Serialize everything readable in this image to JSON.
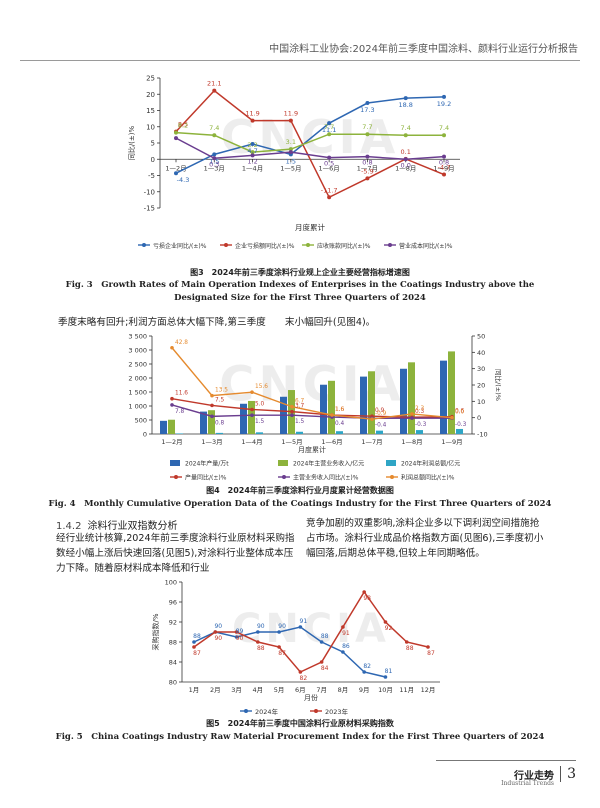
{
  "header": {
    "running_title": "中国涂料工业协会:2024年前三季度中国涂料、颜料行业运行分析报告"
  },
  "watermark": "CNCIA",
  "figures": {
    "fig3": {
      "caption_cn": "图3　2024年前三季度涂料行业规上企业主要经营指标增速图",
      "caption_en": "Fig. 3　Growth Rates of Main Operation Indexes of Enterprises in the Coatings Industry above the Designated Size for the First Three Quarters of 2024"
    },
    "fig4": {
      "caption_cn": "图4　2024年前三季度涂料行业月度累计经营数据图",
      "caption_en": "Fig. 4　Monthly Cumulative Operation Data of the Coatings Industry for the First Three Quarters of 2024"
    },
    "fig5": {
      "caption_cn": "图5　2024年前三季度中国涂料行业原材料采购指数",
      "caption_en": "Fig. 5　China Coatings Industry Raw Material Procurement Index for the First Three Quarters of 2024"
    }
  },
  "text": {
    "line_after_fig3": "季度末略有回升;利润方面总体大幅下降,第三季度　　末小幅回升(见图4)。",
    "section_num": "1.4.2",
    "section_title": "涂料行业双指数分析",
    "left_para": "经行业统计核算,2024年前三季度涂料行业原材料采购指数经小幅上涨后快速回落(见图5),对涂料行业整体成本压力下降。随着原材料成本降低和行业",
    "right_para": "竞争加剧的双重影响,涂料企业多以下调利润空间措施抢占市场。涂料行业成品价格指数方面(见图6),三季度初小幅回落,后期总体平稳,但较上年同期略低。"
  },
  "footer": {
    "journal": "行业走势",
    "journal_en": "Industrial Trends",
    "page": "3"
  },
  "chart_data": [
    {
      "type": "line",
      "x": [
        "1—2月",
        "1—3月",
        "1—4月",
        "1—5月",
        "1—6月",
        "1—7月",
        "1—8月",
        "1—9月"
      ],
      "xlabel": "月度累计",
      "ylabel": "同比/(±)%",
      "ylim": [
        -15,
        25
      ],
      "yticks": [
        -15,
        -10,
        -5,
        0,
        5,
        10,
        15,
        20,
        25
      ],
      "series": [
        {
          "name": "亏损企业同比/(±)%",
          "color": "#2e67b2",
          "values": [
            -4.3,
            1.5,
            4.7,
            1.5,
            11.1,
            17.3,
            18.8,
            19.2
          ]
        },
        {
          "name": "企业亏损额同比/(±)%",
          "color": "#c0392b",
          "values": [
            8.5,
            21.1,
            11.9,
            11.9,
            -11.7,
            -5.9,
            0.1,
            -4.7
          ]
        },
        {
          "name": "应收账款同比/(±)%",
          "color": "#8db33c",
          "values": [
            8.2,
            7.4,
            2.2,
            3.1,
            7.7,
            7.7,
            7.4,
            7.4
          ]
        },
        {
          "name": "营业成本同比/(±)%",
          "color": "#6a3d8f",
          "values": [
            6.5,
            0.3,
            1.2,
            2.2,
            0.5,
            0.8,
            0.0,
            0.8
          ]
        }
      ],
      "data_labels": [
        {
          "series": 0,
          "index": 0,
          "text": "-4.3"
        },
        {
          "series": 0,
          "index": 1,
          "text": "1.5"
        },
        {
          "series": 0,
          "index": 2,
          "text": "4.7"
        },
        {
          "series": 0,
          "index": 3,
          "text": "1.5"
        },
        {
          "series": 0,
          "index": 4,
          "text": "11.1"
        },
        {
          "series": 0,
          "index": 5,
          "text": "17.3"
        },
        {
          "series": 0,
          "index": 6,
          "text": "18.8"
        },
        {
          "series": 0,
          "index": 7,
          "text": "19.2"
        },
        {
          "series": 1,
          "index": 0,
          "text": "8.5"
        },
        {
          "series": 1,
          "index": 1,
          "text": "21.1"
        },
        {
          "series": 1,
          "index": 2,
          "text": "11.9"
        },
        {
          "series": 1,
          "index": 3,
          "text": "11.9"
        },
        {
          "series": 1,
          "index": 4,
          "text": "-11.7"
        },
        {
          "series": 1,
          "index": 5,
          "text": "-5.9"
        },
        {
          "series": 1,
          "index": 6,
          "text": "0.1"
        },
        {
          "series": 1,
          "index": 7,
          "text": "-4.7"
        },
        {
          "series": 2,
          "index": 0,
          "text": "8.2"
        },
        {
          "series": 2,
          "index": 1,
          "text": "7.4"
        },
        {
          "series": 2,
          "index": 2,
          "text": "2.2"
        },
        {
          "series": 2,
          "index": 3,
          "text": "3.1"
        },
        {
          "series": 2,
          "index": 4,
          "text": "7.7"
        },
        {
          "series": 2,
          "index": 5,
          "text": "7.7"
        },
        {
          "series": 2,
          "index": 6,
          "text": "7.4"
        },
        {
          "series": 2,
          "index": 7,
          "text": "7.4"
        },
        {
          "series": 3,
          "index": 1,
          "text": "0.3"
        },
        {
          "series": 3,
          "index": 2,
          "text": "1.2"
        },
        {
          "series": 3,
          "index": 4,
          "text": "0.5"
        },
        {
          "series": 3,
          "index": 5,
          "text": "0.8"
        },
        {
          "series": 3,
          "index": 6,
          "text": "0.0"
        },
        {
          "series": 3,
          "index": 7,
          "text": "0.8"
        }
      ],
      "legend_position": "bottom",
      "grid": false
    },
    {
      "type": "bar",
      "x": [
        "1—2月",
        "1—3月",
        "1—4月",
        "1—5月",
        "1—6月",
        "1—7月",
        "1—8月",
        "1—9月"
      ],
      "xlabel": "月度累计",
      "ylabel_right": "同比/(±)%",
      "ylim_left": [
        0,
        3500
      ],
      "yticks_left": [
        0,
        500,
        1000,
        1500,
        2000,
        2500,
        3000,
        3500
      ],
      "ytick_labels_left": [
        "0",
        "500",
        "1 000",
        "1 500",
        "2 000",
        "2 500",
        "3 000",
        "3 500"
      ],
      "ylim_right": [
        -10,
        50
      ],
      "yticks_right": [
        -10,
        0,
        10,
        20,
        30,
        40,
        50
      ],
      "bar_series": [
        {
          "name": "2024年产量/万t",
          "color": "#2e67b2",
          "values": [
            470,
            800,
            1080,
            1330,
            1760,
            2050,
            2330,
            2620
          ]
        },
        {
          "name": "2024年主营业务收入/亿元",
          "color": "#8db33c",
          "values": [
            510,
            850,
            1180,
            1570,
            1900,
            2240,
            2560,
            2950
          ]
        },
        {
          "name": "2024年利润总额/亿元",
          "color": "#2fa5c5",
          "values": [
            20,
            40,
            60,
            80,
            100,
            120,
            140,
            180
          ]
        }
      ],
      "line_series": [
        {
          "name": "产量同比/(±)%",
          "color": "#c0392b",
          "values": [
            11.6,
            7.5,
            5.0,
            3.7,
            1.6,
            0.9,
            0.3,
            0.6
          ]
        },
        {
          "name": "主营业务收入同比/(±)%",
          "color": "#6a3d8f",
          "values": [
            7.8,
            0.8,
            1.5,
            1.5,
            0.4,
            -0.4,
            -0.3,
            -0.3
          ]
        },
        {
          "name": "利润总额同比/(±)%",
          "color": "#e58a2e",
          "values": [
            42.8,
            13.5,
            15.6,
            6.7,
            1.6,
            -0.9,
            2.3,
            0.0
          ]
        }
      ],
      "data_labels": [
        {
          "series": 0,
          "index": 0,
          "text": "11.6"
        },
        {
          "series": 0,
          "index": 1,
          "text": "7.5"
        },
        {
          "series": 0,
          "index": 2,
          "text": "5.0"
        },
        {
          "series": 0,
          "index": 3,
          "text": "3.7"
        },
        {
          "series": 0,
          "index": 4,
          "text": "1.6"
        },
        {
          "series": 0,
          "index": 5,
          "text": "0.9"
        },
        {
          "series": 0,
          "index": 6,
          "text": "0.3"
        },
        {
          "series": 0,
          "index": 7,
          "text": "0.6"
        },
        {
          "series": 1,
          "index": 0,
          "text": "7.8"
        },
        {
          "series": 1,
          "index": 1,
          "text": "0.8"
        },
        {
          "series": 1,
          "index": 2,
          "text": "1.5"
        },
        {
          "series": 1,
          "index": 3,
          "text": "1.5"
        },
        {
          "series": 1,
          "index": 4,
          "text": "0.4"
        },
        {
          "series": 1,
          "index": 5,
          "text": "-0.4"
        },
        {
          "series": 1,
          "index": 6,
          "text": "-0.3"
        },
        {
          "series": 1,
          "index": 7,
          "text": "-0.3"
        },
        {
          "series": 2,
          "index": 0,
          "text": "42.8"
        },
        {
          "series": 2,
          "index": 1,
          "text": "13.5"
        },
        {
          "series": 2,
          "index": 2,
          "text": "15.6"
        },
        {
          "series": 2,
          "index": 3,
          "text": "6.7"
        },
        {
          "series": 2,
          "index": 4,
          "text": "1.6"
        },
        {
          "series": 2,
          "index": 5,
          "text": "-0.9"
        },
        {
          "series": 2,
          "index": 6,
          "text": "2.3"
        },
        {
          "series": 2,
          "index": 7,
          "text": "0.0"
        }
      ],
      "legend_position": "bottom",
      "grid": false
    },
    {
      "type": "line",
      "x": [
        "1月",
        "2月",
        "3月",
        "4月",
        "5月",
        "6月",
        "7月",
        "8月",
        "9月",
        "10月",
        "11月",
        "12月"
      ],
      "xlabel": "月份",
      "ylabel": "采购指数/%",
      "ylim": [
        80,
        100
      ],
      "yticks": [
        80,
        84,
        88,
        92,
        96,
        100
      ],
      "series": [
        {
          "name": "2024年",
          "color": "#2e67b2",
          "values": [
            88,
            90,
            89,
            90,
            90,
            91,
            88,
            86,
            82,
            null,
            null,
            null
          ]
        },
        {
          "name": "2023年",
          "color": "#c0392b",
          "values": [
            87,
            90,
            90,
            88,
            87,
            82,
            84,
            91,
            98,
            92,
            88,
            87
          ]
        }
      ],
      "extra_points": [
        {
          "series": 0,
          "index": 9,
          "value": 81
        }
      ],
      "data_labels": [
        {
          "series": 0,
          "index": 0,
          "text": "88"
        },
        {
          "series": 0,
          "index": 1,
          "text": "90"
        },
        {
          "series": 0,
          "index": 2,
          "text": "89"
        },
        {
          "series": 0,
          "index": 3,
          "text": "90"
        },
        {
          "series": 0,
          "index": 4,
          "text": "90"
        },
        {
          "series": 0,
          "index": 5,
          "text": "91"
        },
        {
          "series": 0,
          "index": 6,
          "text": "88"
        },
        {
          "series": 0,
          "index": 7,
          "text": "86"
        },
        {
          "series": 0,
          "index": 8,
          "text": "82"
        },
        {
          "series": 0,
          "index": 9,
          "text": "81"
        },
        {
          "series": 1,
          "index": 0,
          "text": "87"
        },
        {
          "series": 1,
          "index": 1,
          "text": "90"
        },
        {
          "series": 1,
          "index": 2,
          "text": "90"
        },
        {
          "series": 1,
          "index": 3,
          "text": "88"
        },
        {
          "series": 1,
          "index": 4,
          "text": "87"
        },
        {
          "series": 1,
          "index": 5,
          "text": "82"
        },
        {
          "series": 1,
          "index": 6,
          "text": "84"
        },
        {
          "series": 1,
          "index": 7,
          "text": "91"
        },
        {
          "series": 1,
          "index": 8,
          "text": "98"
        },
        {
          "series": 1,
          "index": 9,
          "text": "92"
        },
        {
          "series": 1,
          "index": 10,
          "text": "88"
        },
        {
          "series": 1,
          "index": 11,
          "text": "87"
        }
      ],
      "legend_position": "bottom",
      "grid": false
    }
  ]
}
